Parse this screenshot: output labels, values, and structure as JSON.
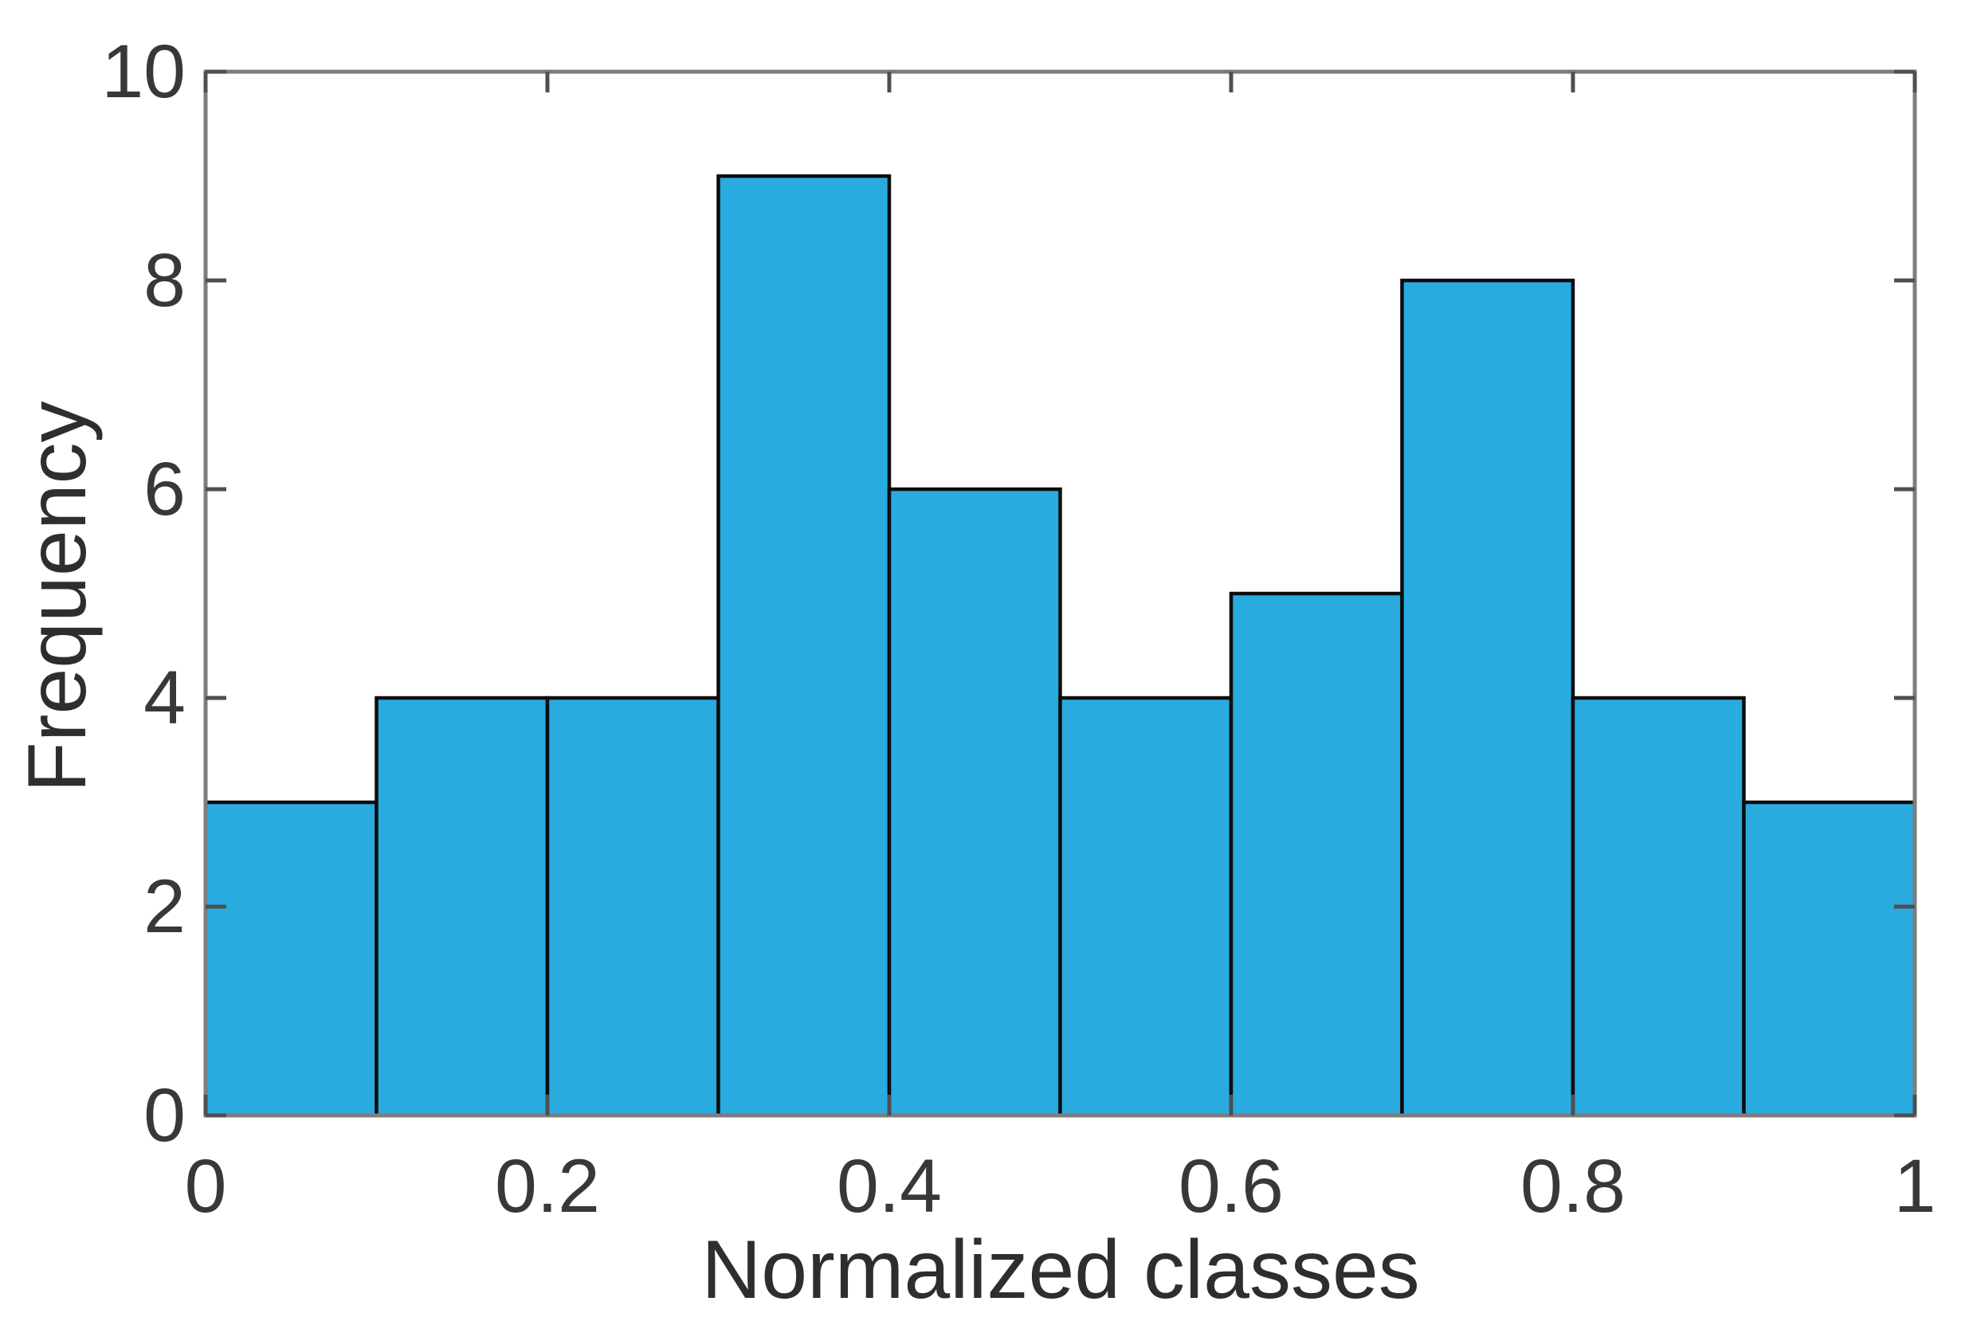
{
  "chart_data": {
    "type": "bar",
    "subtype": "histogram",
    "title": "",
    "xlabel": "Normalized classes",
    "ylabel": "Frequency",
    "bin_edges": [
      0,
      0.1,
      0.2,
      0.3,
      0.4,
      0.5,
      0.6,
      0.7,
      0.8,
      0.9,
      1.0
    ],
    "frequencies": [
      3,
      4,
      4,
      9,
      6,
      4,
      5,
      8,
      4,
      3
    ],
    "xlim": [
      0,
      1
    ],
    "ylim": [
      0,
      10
    ],
    "xticks": {
      "values": [
        0,
        0.2,
        0.4,
        0.6,
        0.8,
        1
      ],
      "labels": [
        "0",
        "0.2",
        "0.4",
        "0.6",
        "0.8",
        "1"
      ]
    },
    "yticks": {
      "values": [
        0,
        2,
        4,
        6,
        8,
        10
      ],
      "labels": [
        "0",
        "2",
        "4",
        "6",
        "8",
        "10"
      ]
    },
    "grid": false,
    "legend": null,
    "colors": {
      "bar_fill": "#29ABE0",
      "bar_edge": "#0d0d0d",
      "axis": "#7d7d7d",
      "tick": "#4f4f4f",
      "tick_label": "#383838",
      "axis_label": "#2e2e2e",
      "background": "#ffffff"
    }
  }
}
